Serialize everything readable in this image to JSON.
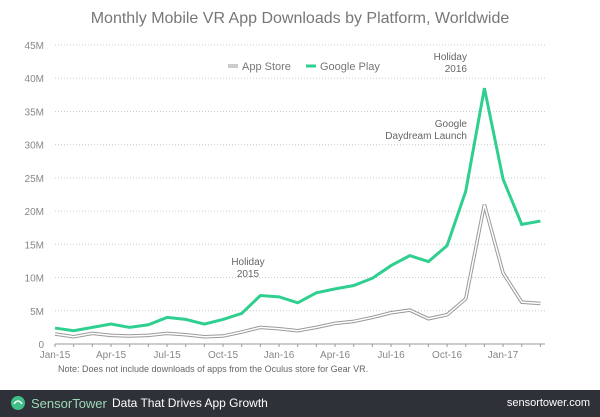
{
  "chart_data": {
    "type": "line",
    "title": "Monthly Mobile VR App Downloads by Platform, Worldwide",
    "x": [
      "Jan-15",
      "Feb-15",
      "Mar-15",
      "Apr-15",
      "May-15",
      "Jun-15",
      "Jul-15",
      "Aug-15",
      "Sep-15",
      "Oct-15",
      "Nov-15",
      "Dec-15",
      "Jan-16",
      "Feb-16",
      "Mar-16",
      "Apr-16",
      "May-16",
      "Jun-16",
      "Jul-16",
      "Aug-16",
      "Sep-16",
      "Oct-16",
      "Nov-16",
      "Dec-16",
      "Jan-17",
      "Feb-17",
      "Mar-17"
    ],
    "x_tick_labels": [
      "Jan-15",
      "Apr-15",
      "Jul-15",
      "Oct-15",
      "Jan-16",
      "Apr-16",
      "Jul-16",
      "Oct-16",
      "Jan-17"
    ],
    "y_tick_labels": [
      "0",
      "5M",
      "10M",
      "15M",
      "20M",
      "25M",
      "30M",
      "35M",
      "40M",
      "45M"
    ],
    "ylim": [
      0,
      45000000
    ],
    "grid": "horizontal dotted",
    "legend": "top-center",
    "series": [
      {
        "name": "App Store",
        "color": "#9a9a9a",
        "values": [
          1.5,
          1.1,
          1.6,
          1.3,
          1.2,
          1.3,
          1.6,
          1.4,
          1.1,
          1.2,
          1.8,
          2.5,
          2.3,
          2.0,
          2.5,
          3.1,
          3.4,
          4.0,
          4.7,
          5.1,
          3.8,
          4.4,
          6.8,
          21.0,
          10.7,
          6.3,
          6.1
        ]
      },
      {
        "name": "Google Play",
        "color": "#2ecf8f",
        "values": [
          2.4,
          2.0,
          2.5,
          3.0,
          2.5,
          2.9,
          4.0,
          3.7,
          3.0,
          3.7,
          4.6,
          7.3,
          7.1,
          6.2,
          7.7,
          8.3,
          8.8,
          9.9,
          11.8,
          13.3,
          12.4,
          14.8,
          23.0,
          38.5,
          24.8,
          18.0,
          18.5
        ]
      }
    ],
    "value_unit": "M",
    "annotations": [
      {
        "line1": "Holiday",
        "line2": "2015"
      },
      {
        "line1": "Google",
        "line2": "Daydream Launch"
      },
      {
        "line1": "Holiday",
        "line2": "2016"
      }
    ]
  },
  "note": "Note: Does not include downloads of apps from the Oculus store for Gear VR.",
  "footer": {
    "brand": "SensorTower",
    "tagline": "Data That Drives App Growth",
    "site": "sensortower.com",
    "bg": "#2e3238"
  }
}
